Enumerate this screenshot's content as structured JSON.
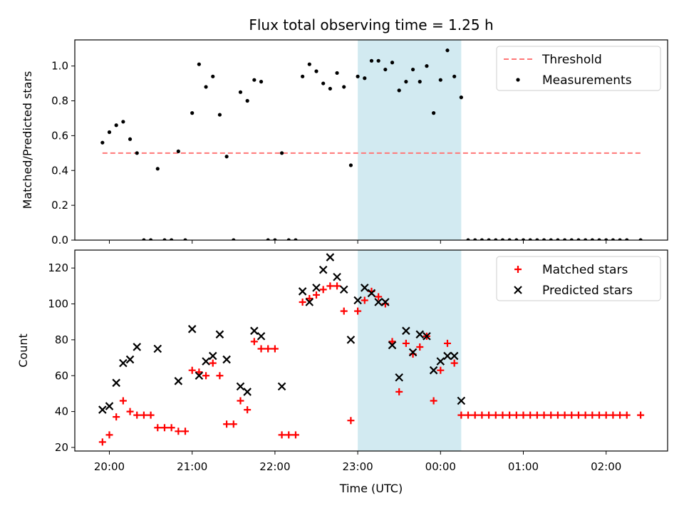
{
  "chart_data": [
    {
      "type": "scatter",
      "title": "Flux total observing time = 1.25 h",
      "ylabel": "Matched/Predicted stars",
      "xlabel": "",
      "x_ticks": [
        "20:00",
        "21:00",
        "22:00",
        "23:00",
        "00:00",
        "01:00",
        "02:00"
      ],
      "y_ticks": [
        "0.0",
        "0.2",
        "0.4",
        "0.6",
        "0.8",
        "1.0"
      ],
      "ylim": [
        0,
        1.15
      ],
      "threshold": {
        "name": "Threshold",
        "value": 0.5,
        "x_start": "19:55",
        "x_end": "02:25",
        "color": "#ff7777"
      },
      "highlight": {
        "x_start": "23:00",
        "x_end": "00:15",
        "color": "#add8e6"
      },
      "legend_position": "upper right",
      "series": [
        {
          "name": "Measurements",
          "color": "#000000",
          "points": [
            [
              "19:55",
              0.56
            ],
            [
              "20:00",
              0.62
            ],
            [
              "20:05",
              0.66
            ],
            [
              "20:10",
              0.68
            ],
            [
              "20:15",
              0.58
            ],
            [
              "20:20",
              0.5
            ],
            [
              "20:25",
              0.0
            ],
            [
              "20:30",
              0.0
            ],
            [
              "20:35",
              0.41
            ],
            [
              "20:40",
              0.0
            ],
            [
              "20:45",
              0.0
            ],
            [
              "20:50",
              0.51
            ],
            [
              "20:55",
              0.0
            ],
            [
              "21:00",
              0.73
            ],
            [
              "21:05",
              1.01
            ],
            [
              "21:10",
              0.88
            ],
            [
              "21:15",
              0.94
            ],
            [
              "21:20",
              0.72
            ],
            [
              "21:25",
              0.48
            ],
            [
              "21:30",
              0.0
            ],
            [
              "21:35",
              0.85
            ],
            [
              "21:40",
              0.8
            ],
            [
              "21:45",
              0.92
            ],
            [
              "21:50",
              0.91
            ],
            [
              "21:55",
              0.0
            ],
            [
              "22:00",
              0.0
            ],
            [
              "22:05",
              0.5
            ],
            [
              "22:10",
              0.0
            ],
            [
              "22:15",
              0.0
            ],
            [
              "22:20",
              0.94
            ],
            [
              "22:25",
              1.01
            ],
            [
              "22:30",
              0.97
            ],
            [
              "22:35",
              0.9
            ],
            [
              "22:40",
              0.87
            ],
            [
              "22:45",
              0.96
            ],
            [
              "22:50",
              0.88
            ],
            [
              "22:55",
              0.43
            ],
            [
              "23:00",
              0.94
            ],
            [
              "23:05",
              0.93
            ],
            [
              "23:10",
              1.03
            ],
            [
              "23:15",
              1.03
            ],
            [
              "23:20",
              0.98
            ],
            [
              "23:25",
              1.02
            ],
            [
              "23:30",
              0.86
            ],
            [
              "23:35",
              0.91
            ],
            [
              "23:40",
              0.98
            ],
            [
              "23:45",
              0.91
            ],
            [
              "23:50",
              1.0
            ],
            [
              "23:55",
              0.73
            ],
            [
              "00:00",
              0.92
            ],
            [
              "00:05",
              1.09
            ],
            [
              "00:10",
              0.94
            ],
            [
              "00:15",
              0.82
            ],
            [
              "00:20",
              0.0
            ],
            [
              "00:25",
              0.0
            ],
            [
              "00:30",
              0.0
            ],
            [
              "00:35",
              0.0
            ],
            [
              "00:40",
              0.0
            ],
            [
              "00:45",
              0.0
            ],
            [
              "00:50",
              0.0
            ],
            [
              "00:55",
              0.0
            ],
            [
              "01:00",
              0.0
            ],
            [
              "01:05",
              0.0
            ],
            [
              "01:10",
              0.0
            ],
            [
              "01:15",
              0.0
            ],
            [
              "01:20",
              0.0
            ],
            [
              "01:25",
              0.0
            ],
            [
              "01:30",
              0.0
            ],
            [
              "01:35",
              0.0
            ],
            [
              "01:40",
              0.0
            ],
            [
              "01:45",
              0.0
            ],
            [
              "01:50",
              0.0
            ],
            [
              "01:55",
              0.0
            ],
            [
              "02:00",
              0.0
            ],
            [
              "02:05",
              0.0
            ],
            [
              "02:10",
              0.0
            ],
            [
              "02:15",
              0.0
            ],
            [
              "02:25",
              0.0
            ]
          ]
        }
      ]
    },
    {
      "type": "scatter",
      "title": "",
      "ylabel": "Count",
      "xlabel": "Time (UTC)",
      "x_ticks": [
        "20:00",
        "21:00",
        "22:00",
        "23:00",
        "00:00",
        "01:00",
        "02:00"
      ],
      "y_ticks": [
        "20",
        "40",
        "60",
        "80",
        "100",
        "120"
      ],
      "ylim": [
        18,
        130
      ],
      "highlight": {
        "x_start": "23:00",
        "x_end": "00:15",
        "color": "#add8e6"
      },
      "legend_position": "upper right",
      "series": [
        {
          "name": "Matched stars",
          "color": "#ff0000",
          "marker": "plus",
          "points": [
            [
              "19:55",
              23
            ],
            [
              "20:00",
              27
            ],
            [
              "20:05",
              37
            ],
            [
              "20:10",
              46
            ],
            [
              "20:15",
              40
            ],
            [
              "20:20",
              38
            ],
            [
              "20:25",
              38
            ],
            [
              "20:30",
              38
            ],
            [
              "20:35",
              31
            ],
            [
              "20:40",
              31
            ],
            [
              "20:45",
              31
            ],
            [
              "20:50",
              29
            ],
            [
              "20:55",
              29
            ],
            [
              "21:00",
              63
            ],
            [
              "21:05",
              62
            ],
            [
              "21:10",
              60
            ],
            [
              "21:15",
              67
            ],
            [
              "21:20",
              60
            ],
            [
              "21:25",
              33
            ],
            [
              "21:30",
              33
            ],
            [
              "21:35",
              46
            ],
            [
              "21:40",
              41
            ],
            [
              "21:45",
              79
            ],
            [
              "21:50",
              75
            ],
            [
              "21:55",
              75
            ],
            [
              "22:00",
              75
            ],
            [
              "22:05",
              27
            ],
            [
              "22:10",
              27
            ],
            [
              "22:15",
              27
            ],
            [
              "22:20",
              101
            ],
            [
              "22:25",
              103
            ],
            [
              "22:30",
              105
            ],
            [
              "22:35",
              108
            ],
            [
              "22:40",
              110
            ],
            [
              "22:45",
              110
            ],
            [
              "22:50",
              96
            ],
            [
              "22:55",
              35
            ],
            [
              "23:00",
              96
            ],
            [
              "23:05",
              102
            ],
            [
              "23:10",
              107
            ],
            [
              "23:15",
              104
            ],
            [
              "23:20",
              100
            ],
            [
              "23:25",
              79
            ],
            [
              "23:30",
              51
            ],
            [
              "23:35",
              78
            ],
            [
              "23:40",
              72
            ],
            [
              "23:45",
              76
            ],
            [
              "23:50",
              82
            ],
            [
              "23:55",
              46
            ],
            [
              "00:00",
              63
            ],
            [
              "00:05",
              78
            ],
            [
              "00:10",
              67
            ],
            [
              "00:15",
              38
            ],
            [
              "00:20",
              38
            ],
            [
              "00:25",
              38
            ],
            [
              "00:30",
              38
            ],
            [
              "00:35",
              38
            ],
            [
              "00:40",
              38
            ],
            [
              "00:45",
              38
            ],
            [
              "00:50",
              38
            ],
            [
              "00:55",
              38
            ],
            [
              "01:00",
              38
            ],
            [
              "01:05",
              38
            ],
            [
              "01:10",
              38
            ],
            [
              "01:15",
              38
            ],
            [
              "01:20",
              38
            ],
            [
              "01:25",
              38
            ],
            [
              "01:30",
              38
            ],
            [
              "01:35",
              38
            ],
            [
              "01:40",
              38
            ],
            [
              "01:45",
              38
            ],
            [
              "01:50",
              38
            ],
            [
              "01:55",
              38
            ],
            [
              "02:00",
              38
            ],
            [
              "02:05",
              38
            ],
            [
              "02:10",
              38
            ],
            [
              "02:15",
              38
            ],
            [
              "02:25",
              38
            ]
          ]
        },
        {
          "name": "Predicted stars",
          "color": "#000000",
          "marker": "x",
          "points": [
            [
              "19:55",
              41
            ],
            [
              "20:00",
              43
            ],
            [
              "20:05",
              56
            ],
            [
              "20:10",
              67
            ],
            [
              "20:15",
              69
            ],
            [
              "20:20",
              76
            ],
            [
              "20:35",
              75
            ],
            [
              "20:50",
              57
            ],
            [
              "21:00",
              86
            ],
            [
              "21:05",
              60
            ],
            [
              "21:10",
              68
            ],
            [
              "21:15",
              71
            ],
            [
              "21:20",
              83
            ],
            [
              "21:25",
              69
            ],
            [
              "21:35",
              54
            ],
            [
              "21:40",
              51
            ],
            [
              "21:45",
              85
            ],
            [
              "21:50",
              82
            ],
            [
              "22:05",
              54
            ],
            [
              "22:20",
              107
            ],
            [
              "22:25",
              101
            ],
            [
              "22:30",
              109
            ],
            [
              "22:35",
              119
            ],
            [
              "22:40",
              126
            ],
            [
              "22:45",
              115
            ],
            [
              "22:50",
              108
            ],
            [
              "22:55",
              80
            ],
            [
              "23:00",
              102
            ],
            [
              "23:05",
              109
            ],
            [
              "23:10",
              106
            ],
            [
              "23:15",
              101
            ],
            [
              "23:20",
              101
            ],
            [
              "23:25",
              77
            ],
            [
              "23:30",
              59
            ],
            [
              "23:35",
              85
            ],
            [
              "23:40",
              73
            ],
            [
              "23:45",
              83
            ],
            [
              "23:50",
              82
            ],
            [
              "23:55",
              63
            ],
            [
              "00:00",
              68
            ],
            [
              "00:05",
              71
            ],
            [
              "00:10",
              71
            ],
            [
              "00:15",
              46
            ]
          ]
        }
      ]
    }
  ]
}
